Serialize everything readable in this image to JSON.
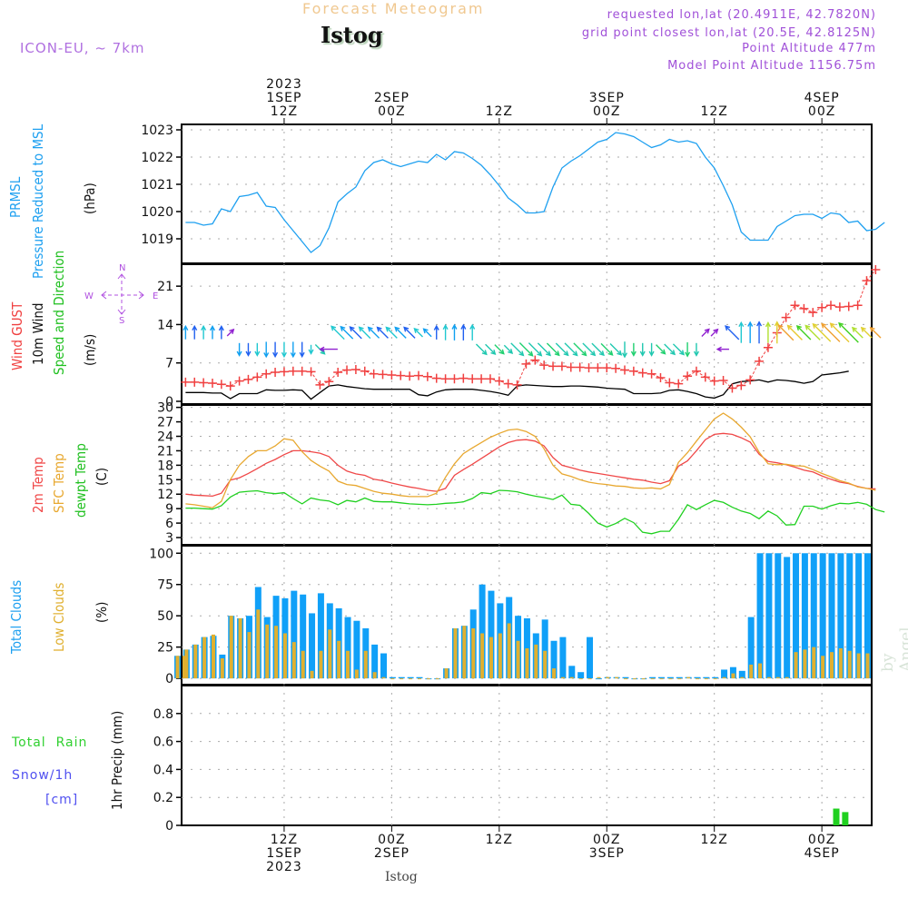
{
  "header": {
    "title": "Forecast Meteogram",
    "station": "Istog",
    "model": "ICON-EU, ~ 7km",
    "requested": "requested lon,lat (20.4911E, 42.7820N)",
    "gridpoint": "grid point closest lon,lat (20.5E, 42.8125N)",
    "altitude": "Point Altitude 477m",
    "model_altitude": "Model Point Altitude 1156.75m",
    "footer_station": "Istog",
    "credit": "by Angel"
  },
  "time_axis": {
    "top_labels": [
      {
        "hour": 12,
        "lines": [
          "2023",
          "1SEP",
          "12Z"
        ]
      },
      {
        "hour": 24,
        "lines": [
          "2SEP",
          "00Z"
        ]
      },
      {
        "hour": 36,
        "lines": [
          "12Z"
        ]
      },
      {
        "hour": 48,
        "lines": [
          "3SEP",
          "00Z"
        ]
      },
      {
        "hour": 60,
        "lines": [
          "12Z"
        ]
      },
      {
        "hour": 72,
        "lines": [
          "4SEP",
          "00Z"
        ]
      }
    ],
    "bottom_labels": [
      {
        "hour": 12,
        "lines": [
          "12Z",
          "1SEP",
          "2023"
        ]
      },
      {
        "hour": 24,
        "lines": [
          "00Z",
          "2SEP"
        ]
      },
      {
        "hour": 36,
        "lines": [
          "12Z"
        ]
      },
      {
        "hour": 48,
        "lines": [
          "00Z",
          "3SEP"
        ]
      },
      {
        "hour": 60,
        "lines": [
          "12Z"
        ]
      },
      {
        "hour": 72,
        "lines": [
          "00Z",
          "4SEP"
        ]
      }
    ]
  },
  "panels": {
    "pressure": {
      "labels": [
        "PRMSL",
        "Pressure Reduced to MSL"
      ],
      "unit": "(hPa)"
    },
    "wind": {
      "labels": [
        "Wind GUST",
        "10m Wind",
        "Speed and Direction"
      ],
      "unit": "(m/s)",
      "compass": {
        "n": "N",
        "s": "S",
        "w": "W",
        "e": "E"
      }
    },
    "temp": {
      "labels": [
        "2m Temp",
        "SFC Temp",
        "dewpt Temp"
      ],
      "unit": "(C)"
    },
    "clouds": {
      "labels": [
        "Total Clouds",
        "Low Clouds"
      ],
      "unit": "(%)"
    },
    "precip": {
      "labels": [
        "Total  Rain",
        "Snow/1h",
        "[cm]"
      ],
      "unit": "1hr Precip (mm)"
    }
  },
  "colors": {
    "pressure": "#1ea0f0",
    "gust": "#f04040",
    "wind": "#000000",
    "t2m": "#f04848",
    "tsfc": "#e8a830",
    "dewpt": "#20d020",
    "total_clouds": "#10a0f8",
    "low_clouds": "#e0b030",
    "rain": "#20d020",
    "snow": "#5050f0"
  },
  "chart_data": [
    {
      "type": "line",
      "title": "PRMSL Pressure Reduced to MSL",
      "ylabel": "(hPa)",
      "ylim": [
        1018.1,
        1023.2
      ],
      "yticks": [
        1019,
        1020,
        1021,
        1022,
        1023
      ],
      "grid": true,
      "x_hours_start": 1,
      "series": [
        {
          "name": "PRMSL",
          "values": [
            1019.6,
            1019.6,
            1019.5,
            1019.55,
            1020.1,
            1020.0,
            1020.55,
            1020.6,
            1020.7,
            1020.2,
            1020.15,
            1019.7,
            1019.3,
            1018.9,
            1018.5,
            1018.75,
            1019.4,
            1020.35,
            1020.65,
            1020.9,
            1021.5,
            1021.8,
            1021.9,
            1021.75,
            1021.65,
            1021.75,
            1021.85,
            1021.8,
            1022.1,
            1021.9,
            1022.2,
            1022.15,
            1021.95,
            1021.7,
            1021.35,
            1020.95,
            1020.5,
            1020.25,
            1019.95,
            1019.95,
            1020.0,
            1020.9,
            1021.6,
            1021.85,
            1022.05,
            1022.3,
            1022.55,
            1022.65,
            1022.9,
            1022.85,
            1022.75,
            1022.55,
            1022.35,
            1022.45,
            1022.65,
            1022.55,
            1022.6,
            1022.5,
            1022.0,
            1021.6,
            1020.95,
            1020.25,
            1019.25,
            1018.95,
            1018.95,
            1018.95,
            1019.45,
            1019.65,
            1019.85,
            1019.9,
            1019.9,
            1019.75,
            1019.95,
            1019.9,
            1019.6,
            1019.65,
            1019.3,
            1019.35,
            1019.6
          ]
        }
      ]
    },
    {
      "type": "line",
      "title": "Wind GUST / 10m Wind Speed and Direction",
      "ylabel": "(m/s)",
      "ylim": [
        -0.5,
        25
      ],
      "yticks": [
        0,
        7,
        14,
        21
      ],
      "grid": true,
      "x_hours_start": 1,
      "series": [
        {
          "name": "Wind GUST",
          "values": [
            3.5,
            3.5,
            3.4,
            3.3,
            3.1,
            2.8,
            3.7,
            4.0,
            4.4,
            5.0,
            5.3,
            5.4,
            5.5,
            5.5,
            5.4,
            3.0,
            3.6,
            5.3,
            5.7,
            5.8,
            5.5,
            5.0,
            4.9,
            4.8,
            4.7,
            4.6,
            4.7,
            4.5,
            4.2,
            4.1,
            4.1,
            4.2,
            4.1,
            4.1,
            4.1,
            3.7,
            3.2,
            3.0,
            6.8,
            7.5,
            6.6,
            6.4,
            6.4,
            6.2,
            6.2,
            6.1,
            6.1,
            6.1,
            6.0,
            5.7,
            5.5,
            5.2,
            5.0,
            4.3,
            3.4,
            3.2,
            4.6,
            5.5,
            4.4,
            3.7,
            3.8,
            2.4,
            2.9,
            3.9,
            7.3,
            9.8,
            12.5,
            15.3,
            17.5,
            16.9,
            16.2,
            17.1,
            17.5,
            17.2,
            17.3,
            17.5,
            22.0,
            24.0
          ]
        },
        {
          "name": "10m Wind",
          "values": [
            1.6,
            1.6,
            1.6,
            1.5,
            1.5,
            0.5,
            1.4,
            1.4,
            1.4,
            2.1,
            2.0,
            2.0,
            2.1,
            2.0,
            0.4,
            1.6,
            2.8,
            3.0,
            2.7,
            2.5,
            2.3,
            2.2,
            2.2,
            2.2,
            2.2,
            2.2,
            1.2,
            1.0,
            1.7,
            2.1,
            2.2,
            2.2,
            2.2,
            2.0,
            1.8,
            1.5,
            1.1,
            2.8,
            3.0,
            2.9,
            2.8,
            2.7,
            2.7,
            2.8,
            2.8,
            2.7,
            2.6,
            2.4,
            2.3,
            2.2,
            1.4,
            1.4,
            1.4,
            1.5,
            2.0,
            2.1,
            1.8,
            1.4,
            0.8,
            0.6,
            1.2,
            3.2,
            3.6,
            3.7,
            3.9,
            3.5,
            3.9,
            3.8,
            3.6,
            3.3,
            3.6,
            4.8,
            5.0,
            5.2,
            5.5
          ]
        },
        {
          "name": "Wind direction (arrows)",
          "values": [
            "N",
            "N",
            "N",
            "N",
            "N",
            "NE",
            "S",
            "S",
            "S",
            "S",
            "S",
            "S",
            "S",
            "S",
            "S",
            "SE",
            "W",
            "NW",
            "NW",
            "NW",
            "NW",
            "NW",
            "NW",
            "NW",
            "NW",
            "NW",
            "NW",
            "NW",
            "N",
            "N",
            "N",
            "N",
            "N",
            "SE",
            "SE",
            "SE",
            "SE",
            "SE",
            "SE",
            "SE",
            "SE",
            "SE",
            "SE",
            "SE",
            "SE",
            "SE",
            "SE",
            "SE",
            "SE",
            "S",
            "S",
            "S",
            "S",
            "SE",
            "SE",
            "SE",
            "S",
            "S",
            "NE",
            "NE",
            "W",
            "NW",
            "N",
            "N",
            "N",
            "N",
            "N",
            "NW",
            "NW",
            "NW",
            "NW",
            "NW",
            "NW",
            "NW",
            "NW",
            "NW",
            "NW",
            "NW"
          ]
        }
      ]
    },
    {
      "type": "line",
      "title": "2m Temp / SFC Temp / dewpt Temp",
      "ylabel": "(C)",
      "ylim": [
        1.5,
        30.5
      ],
      "yticks": [
        3,
        6,
        9,
        12,
        15,
        18,
        21,
        24,
        27,
        30
      ],
      "grid": true,
      "x_hours_start": 1,
      "series": [
        {
          "name": "2m Temp",
          "values": [
            12.0,
            11.8,
            11.7,
            11.6,
            12.2,
            14.9,
            15.4,
            16.3,
            17.3,
            18.4,
            19.2,
            20.2,
            21.0,
            21.0,
            20.8,
            20.5,
            19.8,
            18.0,
            16.8,
            16.2,
            15.9,
            15.1,
            14.8,
            14.3,
            13.9,
            13.5,
            13.2,
            12.8,
            12.6,
            13.2,
            15.9,
            17.1,
            18.2,
            19.4,
            20.6,
            21.8,
            22.7,
            23.2,
            23.3,
            23.0,
            22.0,
            19.6,
            18.0,
            17.5,
            17.0,
            16.6,
            16.3,
            16.0,
            15.7,
            15.4,
            15.1,
            14.9,
            14.5,
            14.2,
            14.8,
            17.8,
            18.9,
            21.0,
            23.3,
            24.4,
            24.6,
            24.4,
            23.7,
            22.8,
            20.3,
            18.8,
            18.5,
            18.1,
            17.6,
            17.0,
            16.6,
            15.8,
            15.1,
            14.5,
            14.2,
            13.6,
            13.2,
            13.1
          ]
        },
        {
          "name": "SFC Temp",
          "values": [
            10.0,
            9.8,
            9.5,
            9.2,
            10.5,
            15.0,
            18.0,
            19.8,
            21.0,
            21.0,
            22.0,
            23.5,
            23.2,
            20.8,
            19.0,
            17.8,
            16.8,
            14.7,
            14.0,
            13.8,
            13.2,
            12.6,
            12.2,
            12.0,
            11.7,
            11.5,
            11.5,
            11.5,
            12.2,
            15.5,
            18.3,
            20.4,
            21.6,
            22.7,
            23.8,
            24.6,
            25.3,
            25.5,
            25.0,
            24.0,
            21.4,
            18.0,
            16.2,
            15.7,
            15.0,
            14.5,
            14.2,
            14.0,
            13.7,
            13.6,
            13.3,
            13.2,
            13.3,
            13.1,
            14.0,
            18.6,
            20.6,
            23.0,
            25.3,
            27.6,
            28.8,
            27.6,
            25.9,
            23.9,
            20.7,
            18.3,
            18.1,
            18.2,
            17.9,
            17.8,
            17.1,
            16.3,
            15.6,
            14.8,
            14.3,
            13.5,
            13.2,
            12.8
          ]
        },
        {
          "name": "dewpt Temp",
          "values": [
            9.1,
            9.1,
            9.0,
            8.9,
            9.6,
            11.4,
            12.4,
            12.6,
            12.7,
            12.3,
            12.1,
            12.3,
            11.1,
            10.0,
            11.2,
            10.8,
            10.6,
            9.8,
            10.7,
            10.4,
            11.2,
            10.5,
            10.4,
            10.4,
            10.2,
            10.0,
            9.9,
            9.8,
            9.9,
            10.1,
            10.2,
            10.4,
            11.1,
            12.3,
            12.1,
            12.8,
            12.7,
            12.5,
            12.0,
            11.6,
            11.3,
            10.9,
            11.8,
            9.9,
            9.7,
            8.0,
            6.0,
            5.2,
            5.9,
            7.0,
            6.1,
            4.1,
            3.8,
            4.3,
            4.3,
            6.8,
            9.8,
            8.8,
            9.8,
            10.7,
            10.3,
            9.3,
            8.5,
            8.0,
            6.9,
            8.5,
            7.5,
            5.6,
            5.7,
            9.5,
            9.5,
            8.9,
            9.6,
            10.1,
            10.0,
            10.3,
            9.9,
            8.8,
            8.3
          ]
        }
      ]
    },
    {
      "type": "bar",
      "title": "Total Clouds / Low Clouds",
      "ylabel": "(%)",
      "ylim": [
        -5,
        106
      ],
      "yticks": [
        0,
        25,
        50,
        75,
        100
      ],
      "grid": true,
      "x_hours_start": 0,
      "series": [
        {
          "name": "Total Clouds",
          "values": [
            18,
            23,
            27,
            33,
            34,
            19,
            50,
            48,
            50,
            73,
            49,
            66,
            64,
            70,
            67,
            52,
            68,
            60,
            56,
            49,
            46,
            40,
            27,
            20,
            1,
            1,
            1,
            1,
            0,
            0,
            8,
            40,
            42,
            55,
            75,
            70,
            60,
            65,
            50,
            48,
            36,
            47,
            30,
            33,
            10,
            5,
            33,
            0,
            1,
            1,
            1,
            0,
            0,
            1,
            1,
            1,
            1,
            1,
            1,
            1,
            1,
            7,
            9,
            6,
            49,
            100,
            100,
            100,
            97,
            100,
            100,
            100,
            100,
            100,
            100,
            100,
            100,
            100,
            100,
            100,
            100,
            100,
            100,
            99,
            100
          ]
        },
        {
          "name": "Low Clouds",
          "values": [
            18,
            23,
            27,
            33,
            35,
            16,
            50,
            48,
            37,
            55,
            43,
            42,
            36,
            29,
            22,
            6,
            22,
            39,
            30,
            22,
            7,
            22,
            5,
            1,
            0,
            0,
            0,
            0,
            0,
            0,
            8,
            40,
            42,
            40,
            36,
            33,
            36,
            44,
            30,
            24,
            27,
            22,
            8,
            1,
            1,
            0,
            0,
            1,
            1,
            1,
            0,
            0,
            0,
            0,
            0,
            0,
            0,
            1,
            0,
            0,
            0,
            1,
            4,
            1,
            11,
            12,
            1,
            1,
            1,
            21,
            23,
            25,
            18,
            21,
            24,
            22,
            20,
            20,
            26,
            44,
            67,
            40,
            35,
            28,
            35
          ]
        }
      ]
    },
    {
      "type": "bar",
      "title": "Total Rain / Snow 1h",
      "ylabel": "1hr Precip (mm)",
      "ylim": [
        0,
        1.0
      ],
      "yticks": [
        0,
        0.2,
        0.4,
        0.6,
        0.8
      ],
      "ytick_labels": [
        "0",
        "0.2",
        "0.4",
        "0.6",
        "0.8"
      ],
      "grid": true,
      "series": [
        {
          "name": "Total Rain",
          "points": [
            {
              "hour": 73,
              "value": 0.12
            },
            {
              "hour": 74,
              "value": 0.095
            }
          ]
        },
        {
          "name": "Snow/1h",
          "points": []
        }
      ]
    }
  ]
}
